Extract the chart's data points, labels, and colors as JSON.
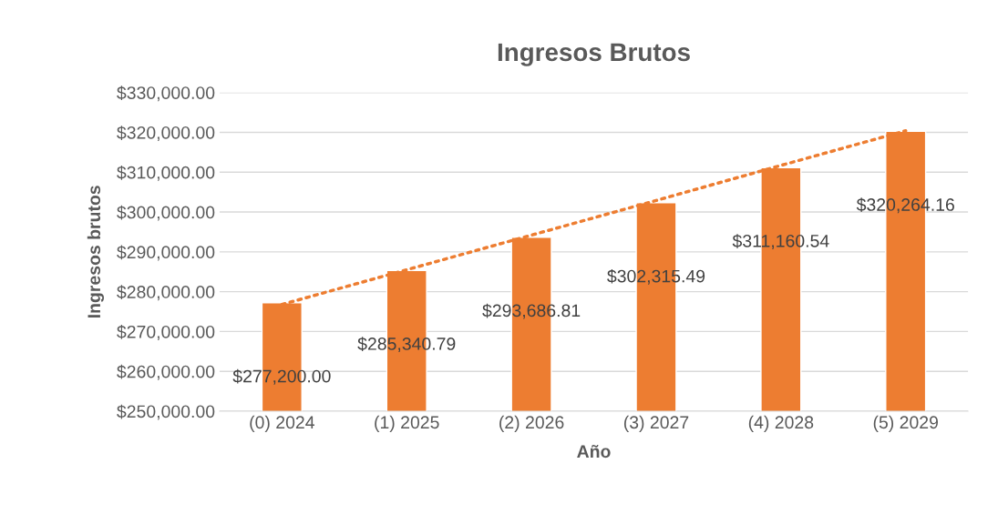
{
  "chart_data": {
    "type": "bar",
    "title": "Ingresos Brutos",
    "xlabel": "Año",
    "ylabel": "Ingresos brutos",
    "categories": [
      "(0) 2024",
      "(1) 2025",
      "(2) 2026",
      "(3) 2027",
      "(4) 2028",
      "(5) 2029"
    ],
    "series": [
      {
        "color": "#ed7d31",
        "values": [
          277200.0,
          285340.79,
          293686.81,
          302315.49,
          311160.54,
          320264.16
        ],
        "value_labels": [
          "$277,200.00",
          "$285,340.79",
          "$293,686.81",
          "$302,315.49",
          "$311,160.54",
          "$320,264.16"
        ]
      },
      {
        "type": "line",
        "color": "#ed7d31",
        "line_style": "dotted",
        "values": [
          276800,
          285500,
          294200,
          302900,
          311700,
          320400
        ]
      }
    ],
    "ylim": [
      250000,
      330000
    ],
    "yticks": [
      {
        "value": 250000,
        "label": "$250,000.00"
      },
      {
        "value": 260000,
        "label": "$260,000.00"
      },
      {
        "value": 270000,
        "label": "$270,000.00"
      },
      {
        "value": 280000,
        "label": "$280,000.00"
      },
      {
        "value": 290000,
        "label": "$290,000.00"
      },
      {
        "value": 300000,
        "label": "$300,000.00"
      },
      {
        "value": 310000,
        "label": "$310,000.00"
      },
      {
        "value": 320000,
        "label": "$320,000.00"
      },
      {
        "value": 330000,
        "label": "$330,000.00"
      }
    ],
    "grid": "y",
    "legend": false
  }
}
